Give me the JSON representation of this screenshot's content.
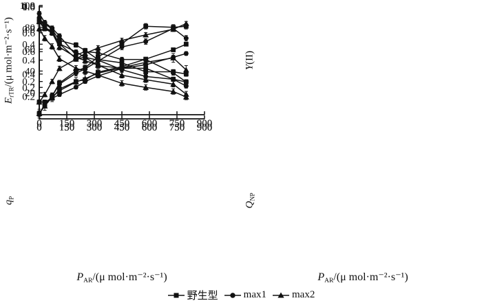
{
  "page": {
    "background": "#ffffff",
    "ink": "#111111"
  },
  "x_axis": {
    "title": {
      "var": "P",
      "sub": "AR",
      "rest": "/(μ mol·m⁻²·s⁻¹)"
    },
    "range": [
      0,
      900
    ],
    "ticks": [
      "0",
      "150",
      "300",
      "450",
      "600",
      "750",
      "900"
    ]
  },
  "legend": {
    "position": "bottom-center",
    "items": [
      {
        "label": "野生型",
        "marker": "square"
      },
      {
        "label": "max1",
        "marker": "circle"
      },
      {
        "label": "max2",
        "marker": "triangle"
      }
    ]
  },
  "chart_data": [
    {
      "type": "line",
      "panel": "top-left",
      "ylabel": {
        "var": "E",
        "sub": "rTR",
        "rest": "/(μ mol·m⁻²·s⁻¹)"
      },
      "ylim": [
        0,
        100
      ],
      "yticks": [
        "20",
        "40",
        "60",
        "80",
        "100"
      ],
      "grid": false,
      "x": [
        0,
        30,
        70,
        110,
        200,
        250,
        320,
        450,
        580,
        730,
        800
      ],
      "series": [
        {
          "name": "野生型",
          "marker": "square",
          "error": 2.5,
          "values": [
            1,
            9,
            17,
            29,
            40,
            43,
            53,
            65,
            81,
            80,
            81
          ]
        },
        {
          "name": "max1",
          "marker": "circle",
          "error": 2.5,
          "values": [
            1,
            9,
            17,
            28,
            38,
            42,
            49,
            62,
            67,
            79,
            70
          ]
        },
        {
          "name": "max2",
          "marker": "triangle",
          "error": 4,
          "values": [
            1,
            8,
            16,
            22,
            30,
            33,
            38,
            43,
            48,
            52,
            41
          ]
        }
      ]
    },
    {
      "type": "line",
      "panel": "top-right",
      "ylabel": {
        "var": "Y",
        "sub": "",
        "rest": "(II)"
      },
      "ylim": [
        0,
        0.8
      ],
      "yticks": [
        "0.2",
        "0.4",
        "0.6",
        "0.8"
      ],
      "grid": false,
      "x": [
        0,
        30,
        70,
        110,
        200,
        250,
        320,
        450,
        580,
        730,
        800
      ],
      "series": [
        {
          "name": "野生型",
          "marker": "square",
          "error": 0.015,
          "values": [
            0.68,
            0.63,
            0.6,
            0.52,
            0.41,
            0.42,
            0.36,
            0.34,
            0.34,
            0.26,
            0.24
          ]
        },
        {
          "name": "max1",
          "marker": "circle",
          "error": 0.015,
          "values": [
            0.71,
            0.64,
            0.61,
            0.52,
            0.46,
            0.42,
            0.4,
            0.33,
            0.28,
            0.26,
            0.21
          ]
        },
        {
          "name": "max2",
          "marker": "triangle",
          "error": 0.02,
          "values": [
            0.63,
            0.56,
            0.5,
            0.41,
            0.34,
            0.32,
            0.29,
            0.23,
            0.2,
            0.17,
            0.13
          ]
        }
      ]
    },
    {
      "type": "line",
      "panel": "bottom-left",
      "ylabel": {
        "var": "q",
        "sub": "P",
        "rest": ""
      },
      "ylim": [
        0,
        1.0
      ],
      "yticks": [
        "0.2",
        "0.4",
        "0.6",
        "0.8",
        "1.0"
      ],
      "grid": false,
      "x": [
        0,
        30,
        70,
        110,
        200,
        250,
        320,
        450,
        580,
        730,
        800
      ],
      "series": [
        {
          "name": "野生型",
          "marker": "square",
          "error": 0.02,
          "values": [
            0.89,
            0.85,
            0.8,
            0.7,
            0.66,
            0.61,
            0.53,
            0.5,
            0.42,
            0.42,
            0.4
          ]
        },
        {
          "name": "max1",
          "marker": "circle",
          "error": 0.02,
          "values": [
            0.94,
            0.86,
            0.81,
            0.74,
            0.57,
            0.6,
            0.59,
            0.53,
            0.53,
            0.41,
            0.33
          ]
        },
        {
          "name": "max2",
          "marker": "triangle",
          "error": 0.025,
          "values": [
            0.87,
            0.81,
            0.77,
            0.64,
            0.55,
            0.52,
            0.48,
            0.39,
            0.35,
            0.31,
            0.22
          ]
        }
      ]
    },
    {
      "type": "line",
      "panel": "bottom-right",
      "ylabel": {
        "var": "Q",
        "sub": "NP",
        "rest": ""
      },
      "ylim": [
        0,
        0.6
      ],
      "yticks": [
        "0.2",
        "0.4",
        "0.6"
      ],
      "grid": false,
      "x": [
        0,
        30,
        70,
        110,
        200,
        250,
        320,
        450,
        580,
        730,
        800
      ],
      "series": [
        {
          "name": "野生型",
          "marker": "square",
          "error": 0.008,
          "values": [
            0.09,
            0.09,
            0.11,
            0.16,
            0.2,
            0.21,
            0.25,
            0.28,
            0.32,
            0.37,
            0.4
          ]
        },
        {
          "name": "max1",
          "marker": "circle",
          "error": 0.01,
          "values": [
            0.09,
            0.09,
            0.11,
            0.13,
            0.17,
            0.2,
            0.23,
            0.27,
            0.29,
            0.33,
            0.35
          ]
        },
        {
          "name": "max2",
          "marker": "triangle",
          "error": 0.012,
          "values": [
            0.09,
            0.13,
            0.2,
            0.27,
            0.32,
            0.35,
            0.38,
            0.42,
            0.45,
            0.48,
            0.51
          ]
        }
      ]
    }
  ]
}
